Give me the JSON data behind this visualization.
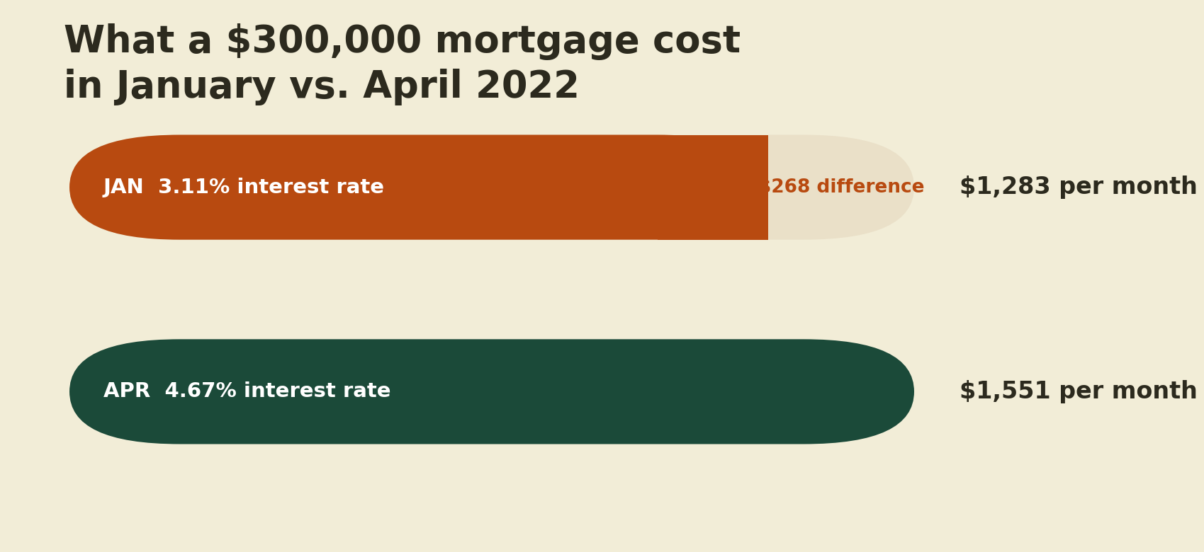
{
  "background_color": "#F2EDD7",
  "title_line1": "What a $300,000 mortgage cost",
  "title_line2": "in January vs. April 2022",
  "title_color": "#2C2A1E",
  "title_fontsize": 38,
  "bars": [
    {
      "label": "JAN  3.11% interest rate",
      "value": 1283,
      "max_value": 1551,
      "color": "#B84A10",
      "extension_color": "#EAE0C8",
      "text_color": "#FFFFFF",
      "monthly": "$1,283 per month",
      "monthly_color": "#2C2A1E",
      "difference_label": "$268 difference",
      "difference_color": "#B84A10"
    },
    {
      "label": "APR  4.67% interest rate",
      "value": 1551,
      "max_value": 1551,
      "color": "#1B4A39",
      "extension_color": null,
      "text_color": "#FFFFFF",
      "monthly": "$1,551 per month",
      "monthly_color": "#2C2A1E",
      "difference_label": null,
      "difference_color": null
    }
  ],
  "bar_label_fontsize": 21,
  "monthly_fontsize": 24,
  "difference_fontsize": 19,
  "figsize": [
    16,
    7.6
  ]
}
